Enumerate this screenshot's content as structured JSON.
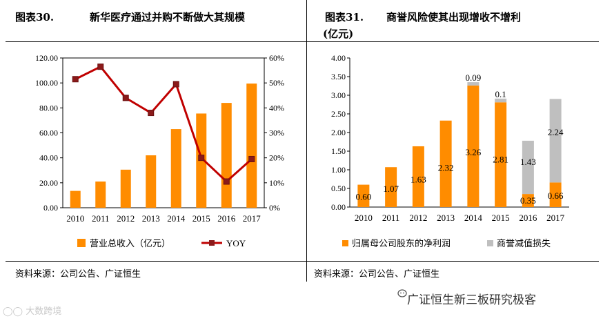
{
  "left_panel": {
    "title_num": "图表30.",
    "title_text": "新华医疗通过并购不断做大其规模",
    "source": "资料来源：公司公告、广证恒生"
  },
  "right_panel": {
    "title_num": "图表31.",
    "title_text": "商誉风险使其出现增收不增利",
    "title_line2": "(亿元)",
    "source": "资料来源：公司公告、广证恒生"
  },
  "watermark": "广证恒生新三板研究极客",
  "corner_mark": "大数跨境",
  "colors": {
    "orange": "#ff8c00",
    "gray": "#bfbfbf",
    "line": "#c00000"
  },
  "chart_data": [
    {
      "type": "bar",
      "categories": [
        "2010",
        "2011",
        "2012",
        "2013",
        "2014",
        "2015",
        "2016",
        "2017"
      ],
      "series": [
        {
          "name": "营业总收入（亿元）",
          "type": "bar",
          "axis": "left",
          "values": [
            13.5,
            21,
            30.5,
            42,
            63,
            75.5,
            84,
            99.5
          ]
        },
        {
          "name": "YOY",
          "type": "line",
          "axis": "right",
          "values": [
            51.5,
            56.5,
            44,
            38,
            49.5,
            20,
            10.5,
            19.5
          ]
        }
      ],
      "y_left": {
        "min": 0,
        "max": 120,
        "ticks": [
          "0.00",
          "20.00",
          "40.00",
          "60.00",
          "80.00",
          "100.00",
          "120.00"
        ]
      },
      "y_right": {
        "min": 0,
        "max": 60,
        "ticks": [
          "0%",
          "10%",
          "20%",
          "30%",
          "40%",
          "50%",
          "60%"
        ]
      },
      "legend": [
        {
          "label": "营业总收入（亿元）"
        },
        {
          "label": "YOY"
        }
      ]
    },
    {
      "type": "bar",
      "stacked": true,
      "categories": [
        "2010",
        "2011",
        "2012",
        "2013",
        "2014",
        "2015",
        "2016",
        "2017"
      ],
      "series": [
        {
          "name": "归属母公司股东的净利润",
          "values": [
            0.6,
            1.07,
            1.63,
            2.32,
            3.26,
            2.81,
            0.35,
            0.66
          ],
          "labels": [
            "0.60",
            "1.07",
            "1.63",
            "2.32",
            "3.26",
            "2.81",
            "0.35",
            "0.66"
          ]
        },
        {
          "name": "商誉减值损失",
          "values": [
            0,
            0,
            0,
            0,
            0.09,
            0.1,
            1.43,
            2.24
          ],
          "labels": [
            "",
            "",
            "",
            "",
            "0.09",
            "0.1",
            "1.43",
            "2.24"
          ]
        }
      ],
      "y": {
        "min": 0,
        "max": 4,
        "ticks": [
          "0.00",
          "0.50",
          "1.00",
          "1.50",
          "2.00",
          "2.50",
          "3.00",
          "3.50",
          "4.00"
        ]
      },
      "legend": [
        {
          "label": "归属母公司股东的净利润"
        },
        {
          "label": "商誉减值损失"
        }
      ]
    }
  ]
}
